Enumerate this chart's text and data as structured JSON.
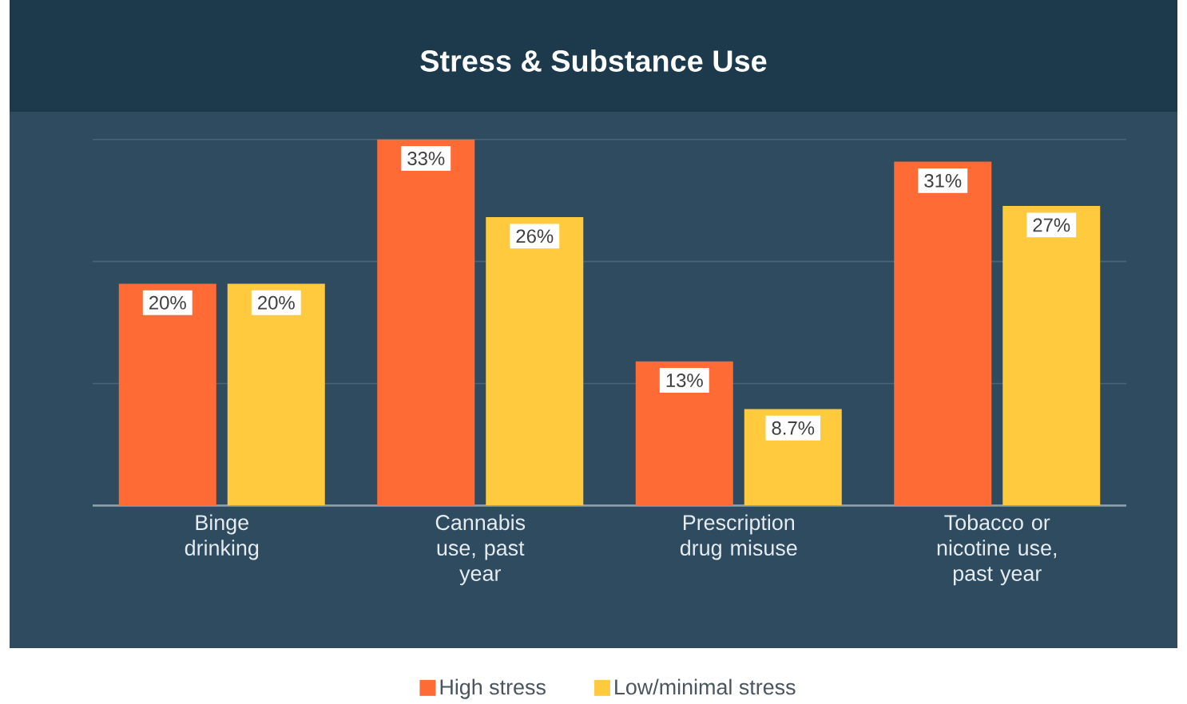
{
  "chart_data": {
    "type": "bar",
    "title": "Stress & Substance Use",
    "categories": [
      "Binge drinking",
      "Cannabis use, past year",
      "Prescription drug misuse",
      "Tobacco or nicotine use, past year"
    ],
    "series": [
      {
        "name": "High stress",
        "color": "#ff6b35",
        "values": [
          20,
          33,
          13,
          31
        ],
        "value_labels": [
          "20%",
          "33%",
          "13%",
          "31%"
        ]
      },
      {
        "name": "Low/minimal stress",
        "color": "#ffca3e",
        "values": [
          20,
          26,
          8.7,
          27
        ],
        "value_labels": [
          "20%",
          "26%",
          "8.7%",
          "27%"
        ]
      }
    ],
    "ylim": [
      0,
      35.5
    ],
    "yticks": [
      {
        "value": 11,
        "label": null
      },
      {
        "value": 22,
        "label": null
      },
      {
        "value": 33,
        "label": null
      }
    ],
    "grid": "y",
    "legend": "bottom",
    "tick_labels": "x"
  }
}
